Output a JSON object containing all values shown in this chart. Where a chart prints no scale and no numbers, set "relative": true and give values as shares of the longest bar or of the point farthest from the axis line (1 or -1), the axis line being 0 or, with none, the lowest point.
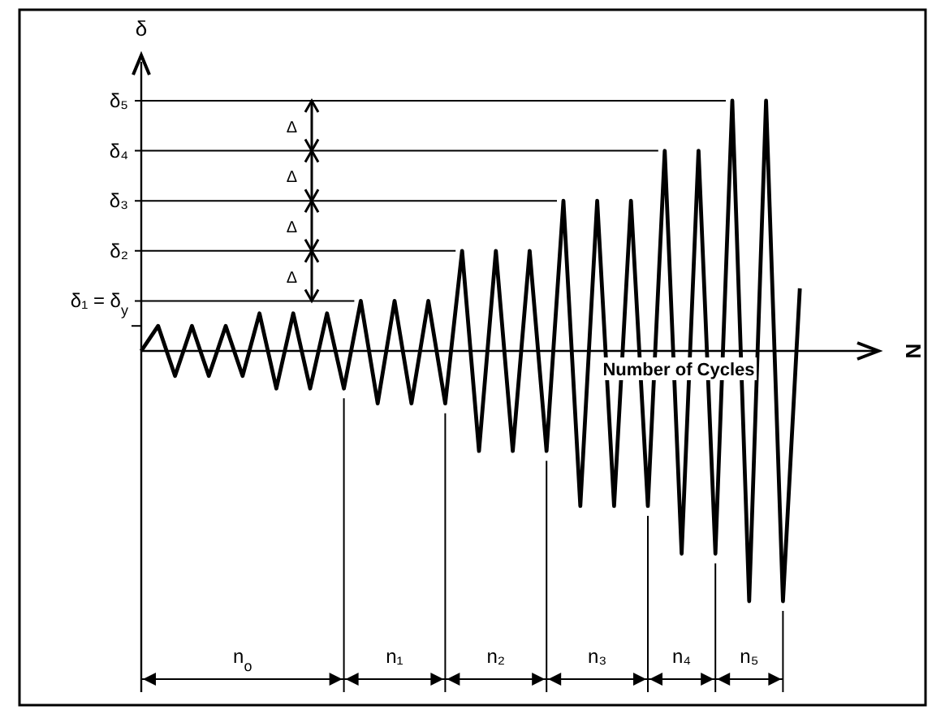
{
  "chart_data": {
    "type": "line",
    "relative": true,
    "xlabel": "Number of Cycles",
    "ylabel": "δ",
    "color": "#000000",
    "marker": "none",
    "line_style": "solid",
    "categories": [
      null,
      null,
      null,
      null,
      null,
      null,
      null,
      null,
      null,
      null,
      null,
      null,
      null,
      null,
      null,
      null,
      null,
      null,
      null,
      null,
      null,
      null,
      null,
      null,
      null,
      null,
      null,
      null,
      null,
      null,
      null,
      null,
      null,
      null,
      null,
      null,
      null,
      null,
      null,
      null
    ],
    "values": [
      0,
      0.1,
      -0.1,
      0.1,
      -0.1,
      0.1,
      -0.1,
      0.15,
      -0.15,
      0.15,
      -0.15,
      0.15,
      -0.15,
      0.2,
      -0.21,
      0.2,
      -0.21,
      0.2,
      -0.21,
      0.4,
      -0.4,
      0.4,
      -0.4,
      0.4,
      -0.4,
      0.6,
      -0.62,
      0.6,
      -0.62,
      0.6,
      -0.62,
      0.8,
      -0.81,
      0.8,
      -0.81,
      1,
      -1,
      1,
      -1,
      0.25
    ],
    "ref_lines": [
      {
        "axis": "y",
        "value": 0.2,
        "label": "δ₁ = δ$_{y}$"
      },
      {
        "axis": "y",
        "value": 0.4,
        "label": "δ₂"
      },
      {
        "axis": "y",
        "value": 0.6,
        "label": "δ₃"
      },
      {
        "axis": "y",
        "value": 0.8,
        "label": "δ₄"
      },
      {
        "axis": "y",
        "value": 1,
        "label": "δ₅"
      }
    ],
    "annotations": [
      "N",
      "Δ",
      "Δ",
      "Δ",
      "Δ",
      "n$_{o}$",
      "n₁",
      "n₂",
      "n₃",
      "n₄",
      "n₅"
    ]
  }
}
